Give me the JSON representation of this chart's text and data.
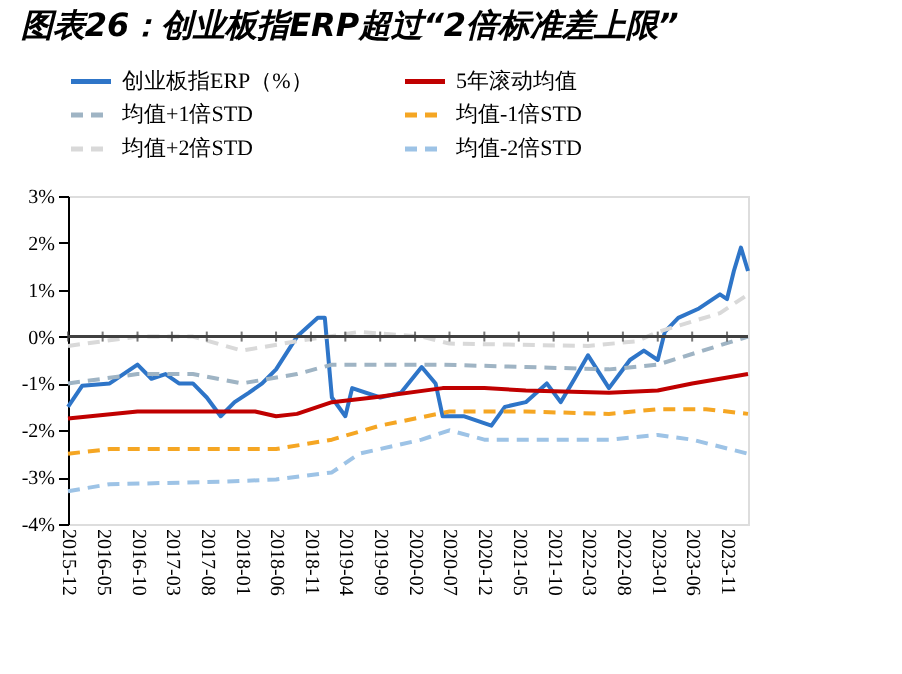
{
  "chart_data": {
    "type": "line",
    "title": "图表26：创业板指ERP超过“2倍标准差上限”",
    "xlim": [
      "2015-12",
      "2024-02"
    ],
    "xticks": [
      "2015-12",
      "2016-05",
      "2016-10",
      "2017-03",
      "2017-08",
      "2018-01",
      "2018-06",
      "2018-11",
      "2019-04",
      "2019-09",
      "2020-02",
      "2020-07",
      "2020-12",
      "2021-05",
      "2021-10",
      "2022-03",
      "2022-08",
      "2023-01",
      "2023-06",
      "2023-11"
    ],
    "ylim": [
      -4,
      3
    ],
    "yticks": [
      {
        "value": -4,
        "label": "-4%"
      },
      {
        "value": -3,
        "label": "-3%"
      },
      {
        "value": -2,
        "label": "-2%"
      },
      {
        "value": -1,
        "label": "-1%"
      },
      {
        "value": 0,
        "label": "0%"
      },
      {
        "value": 1,
        "label": "1%"
      },
      {
        "value": 2,
        "label": "2%"
      },
      {
        "value": 3,
        "label": "3%"
      }
    ],
    "grid": false,
    "legend": "top",
    "marker": "none",
    "ref_lines": [
      {
        "axis": "y",
        "value": 0,
        "color": "#404040"
      }
    ],
    "series": [
      {
        "name": "创业板指ERP（%）",
        "color": "#2e75c8",
        "line_style": "solid",
        "x": [
          "2015-12",
          "2016-02",
          "2016-06",
          "2016-10",
          "2016-12",
          "2017-02",
          "2017-04",
          "2017-06",
          "2017-08",
          "2017-10",
          "2017-12",
          "2018-02",
          "2018-04",
          "2018-06",
          "2018-09",
          "2018-12",
          "2019-01",
          "2019-02",
          "2019-04",
          "2019-05",
          "2019-09",
          "2019-12",
          "2020-03",
          "2020-05",
          "2020-06",
          "2020-09",
          "2021-01",
          "2021-03",
          "2021-06",
          "2021-09",
          "2021-11",
          "2022-01",
          "2022-03",
          "2022-06",
          "2022-09",
          "2022-11",
          "2023-01",
          "2023-02",
          "2023-04",
          "2023-07",
          "2023-10",
          "2023-11",
          "2023-12",
          "2024-01",
          "2024-02"
        ],
        "values": [
          -1.5,
          -1.05,
          -1.0,
          -0.6,
          -0.9,
          -0.8,
          -1.0,
          -1.0,
          -1.3,
          -1.7,
          -1.4,
          -1.2,
          -1.0,
          -0.7,
          0.0,
          0.4,
          0.4,
          -1.3,
          -1.7,
          -1.1,
          -1.3,
          -1.2,
          -0.65,
          -1.0,
          -1.7,
          -1.7,
          -1.9,
          -1.5,
          -1.4,
          -1.0,
          -1.4,
          -0.9,
          -0.4,
          -1.1,
          -0.5,
          -0.3,
          -0.5,
          0.1,
          0.4,
          0.6,
          0.9,
          0.8,
          1.4,
          1.9,
          1.4
        ]
      },
      {
        "name": "5年滚动均值",
        "color": "#c00000",
        "line_style": "solid",
        "x": [
          "2015-12",
          "2016-10",
          "2018-03",
          "2018-06",
          "2018-09",
          "2019-02",
          "2019-08",
          "2020-06",
          "2020-12",
          "2021-06",
          "2022-06",
          "2023-01",
          "2023-06",
          "2024-02"
        ],
        "values": [
          -1.75,
          -1.6,
          -1.6,
          -1.7,
          -1.65,
          -1.4,
          -1.3,
          -1.1,
          -1.1,
          -1.15,
          -1.2,
          -1.15,
          -1.0,
          -0.8
        ]
      },
      {
        "name": "均值+1倍STD",
        "color": "#9fb4c4",
        "line_style": "dashed",
        "x": [
          "2015-12",
          "2016-10",
          "2017-06",
          "2018-01",
          "2018-09",
          "2019-02",
          "2020-06",
          "2021-06",
          "2022-06",
          "2023-01",
          "2024-02"
        ],
        "values": [
          -1.0,
          -0.8,
          -0.8,
          -1.0,
          -0.8,
          -0.6,
          -0.6,
          -0.65,
          -0.7,
          -0.6,
          0.0
        ]
      },
      {
        "name": "均值-1倍STD",
        "color": "#f5a623",
        "line_style": "dashed",
        "x": [
          "2015-12",
          "2016-06",
          "2018-06",
          "2019-02",
          "2019-09",
          "2020-07",
          "2021-06",
          "2022-06",
          "2023-01",
          "2023-08",
          "2024-02"
        ],
        "values": [
          -2.5,
          -2.4,
          -2.4,
          -2.2,
          -1.9,
          -1.6,
          -1.6,
          -1.65,
          -1.55,
          -1.55,
          -1.65
        ]
      },
      {
        "name": "均值+2倍STD",
        "color": "#d9d9d9",
        "line_style": "dashed",
        "x": [
          "2015-12",
          "2016-10",
          "2017-06",
          "2018-01",
          "2018-09",
          "2019-06",
          "2020-03",
          "2020-07",
          "2022-03",
          "2022-10",
          "2023-01",
          "2023-10",
          "2024-02"
        ],
        "values": [
          -0.2,
          0.0,
          0.0,
          -0.3,
          -0.1,
          0.1,
          0.0,
          -0.15,
          -0.2,
          -0.1,
          0.1,
          0.5,
          0.9
        ]
      },
      {
        "name": "均值-2倍STD",
        "color": "#9dc3e6",
        "line_style": "dashed",
        "x": [
          "2015-12",
          "2016-06",
          "2017-10",
          "2018-06",
          "2019-02",
          "2019-06",
          "2020-03",
          "2020-07",
          "2020-12",
          "2022-06",
          "2023-01",
          "2023-06",
          "2024-02"
        ],
        "values": [
          -3.3,
          -3.15,
          -3.1,
          -3.05,
          -2.9,
          -2.5,
          -2.2,
          -2.0,
          -2.2,
          -2.2,
          -2.1,
          -2.2,
          -2.5
        ]
      }
    ]
  }
}
